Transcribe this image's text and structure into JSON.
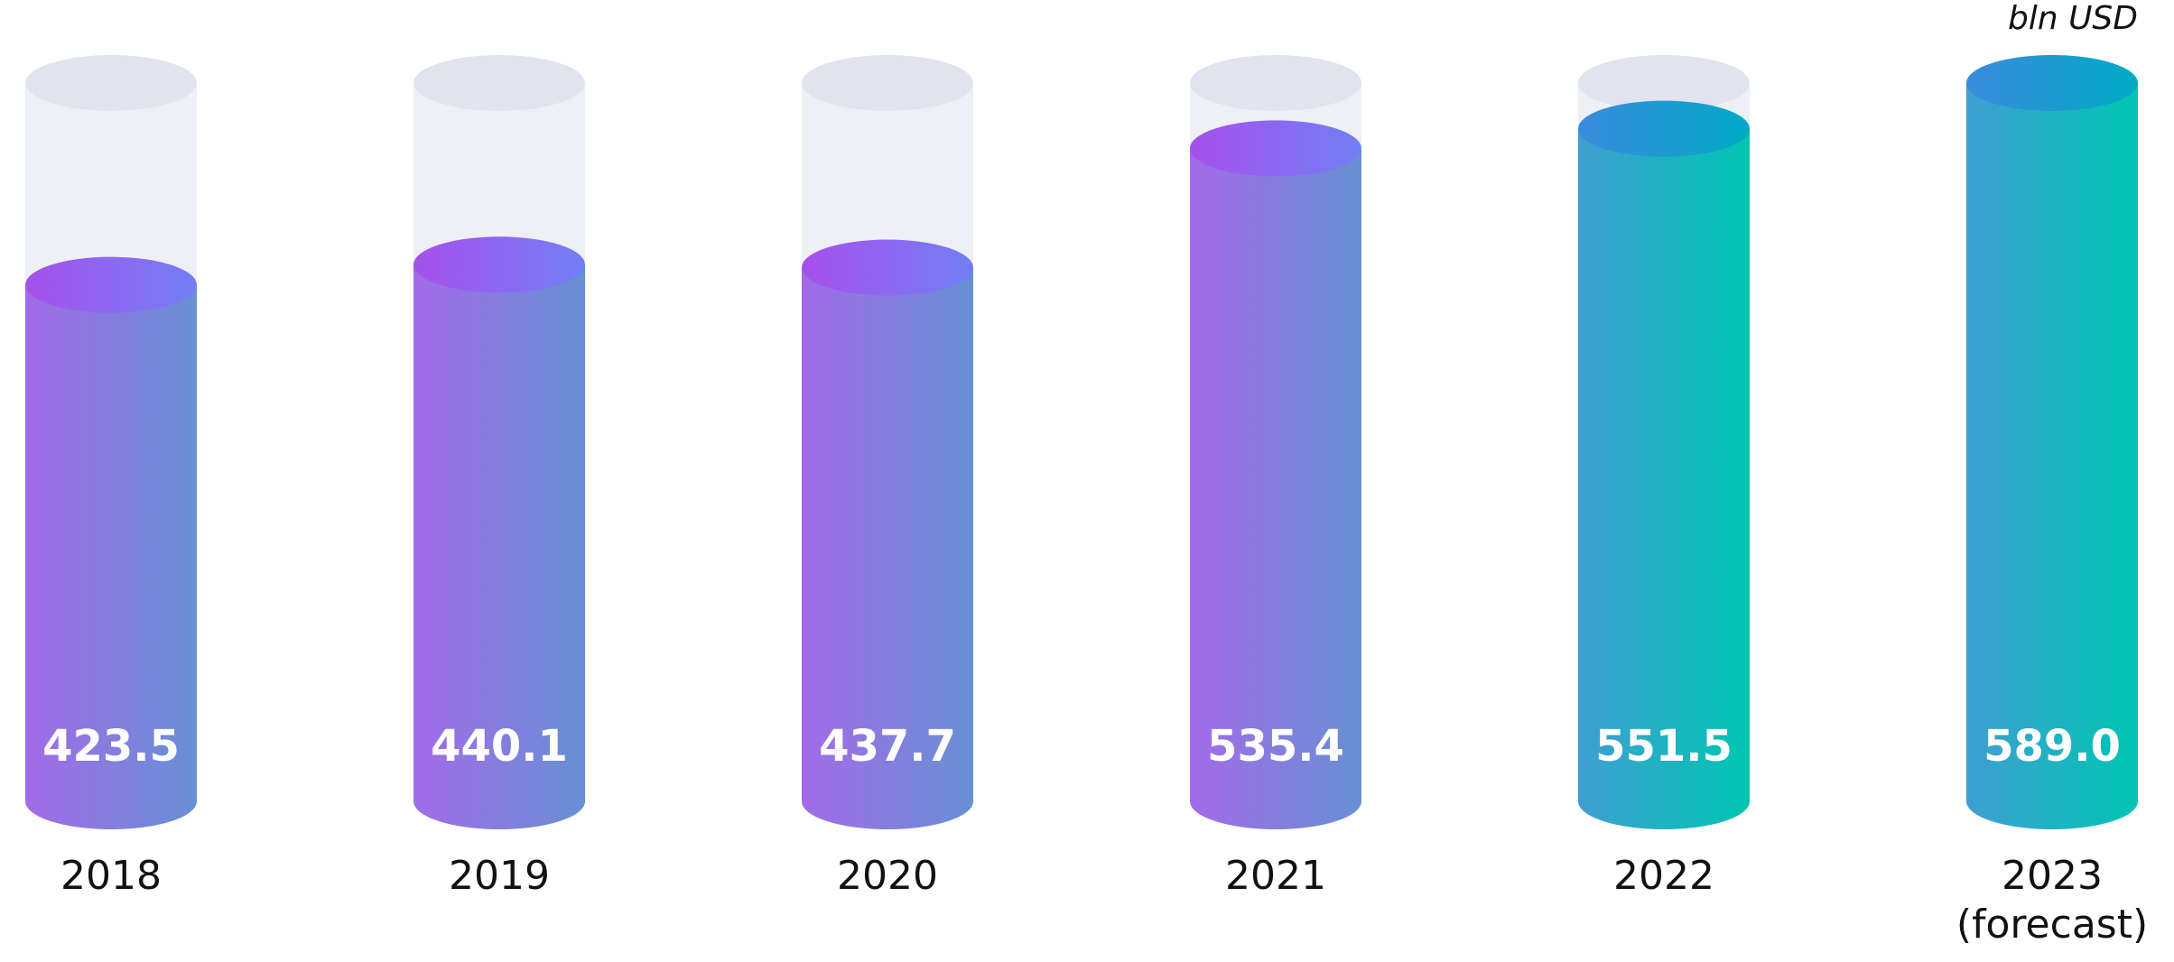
{
  "chart_data": {
    "type": "cylinder",
    "unit": "bln USD",
    "categories": [
      "2018",
      "2019",
      "2020",
      "2021",
      "2022",
      "2023 (forecast)"
    ],
    "values": [
      423.5,
      440.1,
      437.7,
      535.4,
      551.5,
      589.0
    ],
    "value_labels": [
      "423.5",
      "440.1",
      "437.7",
      "535.4",
      "551.5",
      "589.0"
    ],
    "colors": [
      [
        "#a36be8",
        "#6790d4"
      ],
      [
        "#a36be8",
        "#6790d4"
      ],
      [
        "#a36be8",
        "#6790d4"
      ],
      [
        "#a36be8",
        "#6790d4"
      ],
      [
        "#3f9ed2",
        "#00c6b2"
      ],
      [
        "#3f9ed2",
        "#00c6b2"
      ]
    ],
    "top_colors": [
      [
        "#a650ec",
        "#727ff6"
      ],
      [
        "#a650ec",
        "#727ff6"
      ],
      [
        "#a650ec",
        "#727ff6"
      ],
      [
        "#a650ec",
        "#727ff6"
      ],
      [
        "#3a8bdc",
        "#00aac6"
      ],
      [
        "#3a8bdc",
        "#00aac6"
      ]
    ]
  }
}
